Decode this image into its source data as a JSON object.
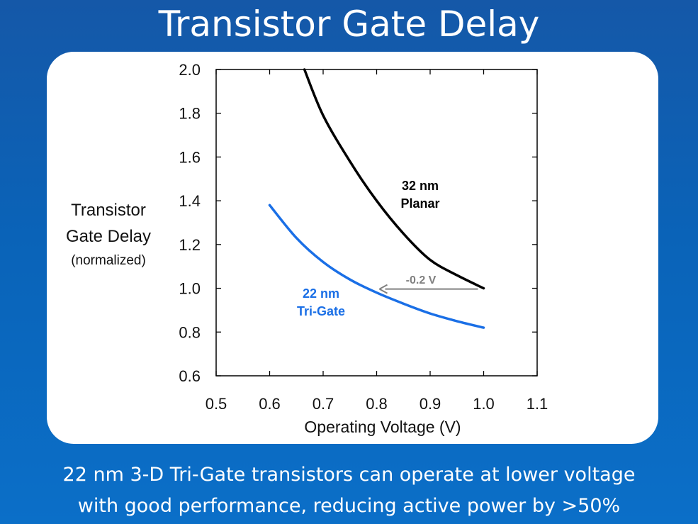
{
  "slide": {
    "title": "Transistor Gate Delay",
    "caption_line1": "22 nm 3-D Tri-Gate transistors can operate at lower voltage",
    "caption_line2": "with good performance, reducing active power by >50%"
  },
  "chart_data": {
    "type": "line",
    "ylabel_lines": [
      "Transistor",
      "Gate Delay",
      "(normalized)"
    ],
    "xlabel": "Operating Voltage (V)",
    "xlim": [
      0.5,
      1.1
    ],
    "ylim": [
      0.6,
      2.0
    ],
    "xticks": [
      "0.5",
      "0.6",
      "0.7",
      "0.8",
      "0.9",
      "1.0",
      "1.1"
    ],
    "yticks": [
      "0.6",
      "0.8",
      "1.0",
      "1.2",
      "1.4",
      "1.6",
      "1.8",
      "2.0"
    ],
    "grid": false,
    "series": [
      {
        "name": "32 nm Planar",
        "label_lines": [
          "32 nm",
          "Planar"
        ],
        "color": "#000000",
        "x": [
          0.665,
          0.7,
          0.75,
          0.8,
          0.85,
          0.9,
          0.95,
          1.0
        ],
        "y": [
          2.0,
          1.79,
          1.58,
          1.4,
          1.25,
          1.13,
          1.06,
          1.0
        ]
      },
      {
        "name": "22 nm Tri-Gate",
        "label_lines": [
          "22 nm",
          "Tri-Gate"
        ],
        "color": "#1a6fe6",
        "x": [
          0.6,
          0.65,
          0.7,
          0.75,
          0.8,
          0.85,
          0.9,
          0.95,
          1.0
        ],
        "y": [
          1.38,
          1.23,
          1.12,
          1.04,
          0.98,
          0.93,
          0.885,
          0.85,
          0.82
        ]
      }
    ],
    "annotation": {
      "text": "-0.2 V",
      "color": "#808080",
      "from": [
        1.0,
        1.0
      ],
      "to": [
        0.8,
        1.0
      ]
    }
  }
}
